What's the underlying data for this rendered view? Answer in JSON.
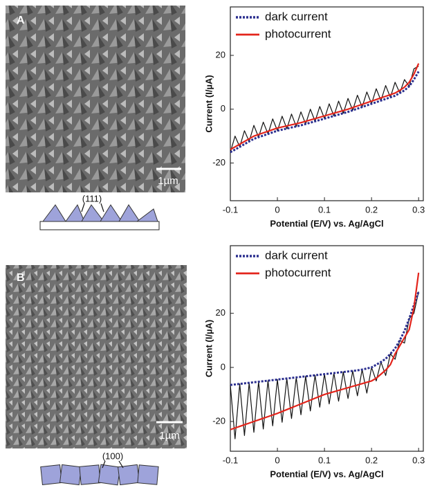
{
  "panels": [
    {
      "label": "A",
      "scale_bar": "1µm",
      "facet": "(111)"
    },
    {
      "label": "B",
      "scale_bar": "1µm",
      "facet": "(100)"
    }
  ],
  "chart_data": [
    {
      "type": "line",
      "x_label": "Potential (E/V) vs. Ag/AgCl",
      "y_label": "Current (I/µA)",
      "x": [
        -0.1,
        -0.09,
        -0.08,
        -0.07,
        -0.06,
        -0.05,
        -0.04,
        -0.03,
        -0.02,
        -0.01,
        0,
        0.01,
        0.02,
        0.03,
        0.04,
        0.05,
        0.06,
        0.07,
        0.08,
        0.09,
        0.1,
        0.11,
        0.12,
        0.13,
        0.14,
        0.15,
        0.16,
        0.17,
        0.18,
        0.19,
        0.2,
        0.21,
        0.22,
        0.23,
        0.24,
        0.25,
        0.26,
        0.27,
        0.28,
        0.29,
        0.3
      ],
      "series": [
        {
          "color": "#111111",
          "width": 1.2,
          "values": [
            -16,
            -10,
            -14,
            -8,
            -12,
            -6,
            -10.4,
            -4.8,
            -9.2,
            -3.6,
            -8,
            -2.6,
            -7.2,
            -1.8,
            -6.4,
            -1,
            -5.5,
            0,
            -4.5,
            1,
            -3.5,
            2,
            -2.5,
            3,
            -1.5,
            4,
            -0.4,
            5.2,
            0.8,
            6.4,
            2,
            7.6,
            3.2,
            8.8,
            4.4,
            10,
            6,
            11,
            8.5,
            15,
            16
          ]
        },
        {
          "name": "dark current",
          "color": "#2b2f8f",
          "width": 3,
          "dash": "3 2",
          "values": [
            -16,
            -15,
            -14,
            -13,
            -12,
            -11,
            -10.4,
            -9.8,
            -9.2,
            -8.6,
            -8,
            -7.6,
            -7.2,
            -6.8,
            -6.4,
            -6,
            -5.5,
            -5,
            -4.5,
            -4,
            -3.5,
            -3,
            -2.5,
            -2,
            -1.5,
            -1,
            -0.4,
            0.2,
            0.8,
            1.4,
            2,
            2.6,
            3.2,
            3.8,
            4.4,
            5,
            6,
            7,
            8.5,
            11,
            14
          ]
        },
        {
          "name": "photocurrent",
          "color": "#e3241b",
          "width": 2.2,
          "values": [
            -15,
            -14,
            -13,
            -12,
            -11,
            -10,
            -9.4,
            -8.8,
            -8.2,
            -7.6,
            -7,
            -6.6,
            -6.2,
            -5.8,
            -5.4,
            -5,
            -4.5,
            -4,
            -3.5,
            -3,
            -2.5,
            -2,
            -1.5,
            -1,
            -0.5,
            0,
            0.6,
            1.2,
            1.8,
            2.4,
            3,
            3.6,
            4.2,
            4.8,
            5.4,
            6,
            7,
            8.2,
            10,
            13,
            17
          ]
        }
      ],
      "xlim": [
        -0.1,
        0.31
      ],
      "ylim": [
        -34,
        38
      ],
      "xticks": [
        -0.1,
        0,
        0.1,
        0.2,
        0.3
      ],
      "yticks": [
        -20,
        0,
        20
      ],
      "legend": "upper left"
    },
    {
      "type": "line",
      "x_label": "Potential (E/V) vs. Ag/AgCl",
      "y_label": "Current (I/µA)",
      "x": [
        -0.1,
        -0.09,
        -0.08,
        -0.07,
        -0.06,
        -0.05,
        -0.04,
        -0.03,
        -0.02,
        -0.01,
        0,
        0.01,
        0.02,
        0.03,
        0.04,
        0.05,
        0.06,
        0.07,
        0.08,
        0.09,
        0.1,
        0.11,
        0.12,
        0.13,
        0.14,
        0.15,
        0.16,
        0.17,
        0.18,
        0.19,
        0.2,
        0.21,
        0.22,
        0.23,
        0.24,
        0.25,
        0.26,
        0.27,
        0.28,
        0.29,
        0.3
      ],
      "series": [
        {
          "color": "#111111",
          "width": 1.2,
          "values": [
            -6.5,
            -26.4,
            -6.1,
            -25.2,
            -5.7,
            -24,
            -5.3,
            -22.8,
            -4.9,
            -21.6,
            -4.5,
            -20.3,
            -4.1,
            -18.9,
            -3.7,
            -17.5,
            -3.3,
            -16.1,
            -2.9,
            -14.7,
            -2.5,
            -13.5,
            -2.1,
            -12.5,
            -1.7,
            -11.5,
            -1.3,
            -10.5,
            -0.8,
            -9.5,
            0,
            -5,
            2,
            -3,
            5,
            3,
            10,
            9,
            18,
            20,
            28
          ]
        },
        {
          "name": "dark current",
          "color": "#2b2f8f",
          "width": 3,
          "dash": "3 2",
          "values": [
            -6.5,
            -6.3,
            -6.1,
            -5.9,
            -5.7,
            -5.5,
            -5.3,
            -5.1,
            -4.9,
            -4.7,
            -4.5,
            -4.3,
            -4.1,
            -3.9,
            -3.7,
            -3.5,
            -3.3,
            -3.1,
            -2.9,
            -2.7,
            -2.5,
            -2.3,
            -2.1,
            -1.9,
            -1.7,
            -1.5,
            -1.3,
            -1.1,
            -0.8,
            -0.4,
            0,
            1,
            2,
            3.2,
            5,
            7,
            10,
            13.5,
            18,
            23,
            28
          ]
        },
        {
          "name": "photocurrent",
          "color": "#e3241b",
          "width": 2.2,
          "values": [
            -23,
            -22.4,
            -21.8,
            -21.2,
            -20.6,
            -20,
            -19.4,
            -18.8,
            -18.2,
            -17.6,
            -17,
            -16.3,
            -15.6,
            -14.9,
            -14.2,
            -13.5,
            -12.8,
            -12.1,
            -11.4,
            -10.7,
            -10,
            -9.5,
            -9,
            -8.5,
            -8,
            -7.5,
            -7,
            -6.5,
            -6,
            -5.5,
            -5,
            -4,
            -2.5,
            -1,
            1,
            5,
            8,
            11,
            14,
            22,
            35
          ]
        }
      ],
      "xlim": [
        -0.1,
        0.31
      ],
      "ylim": [
        -31,
        45
      ],
      "xticks": [
        -0.1,
        0,
        0.1,
        0.2,
        0.3
      ],
      "yticks": [
        -20,
        0,
        20
      ],
      "legend": "upper left"
    }
  ]
}
